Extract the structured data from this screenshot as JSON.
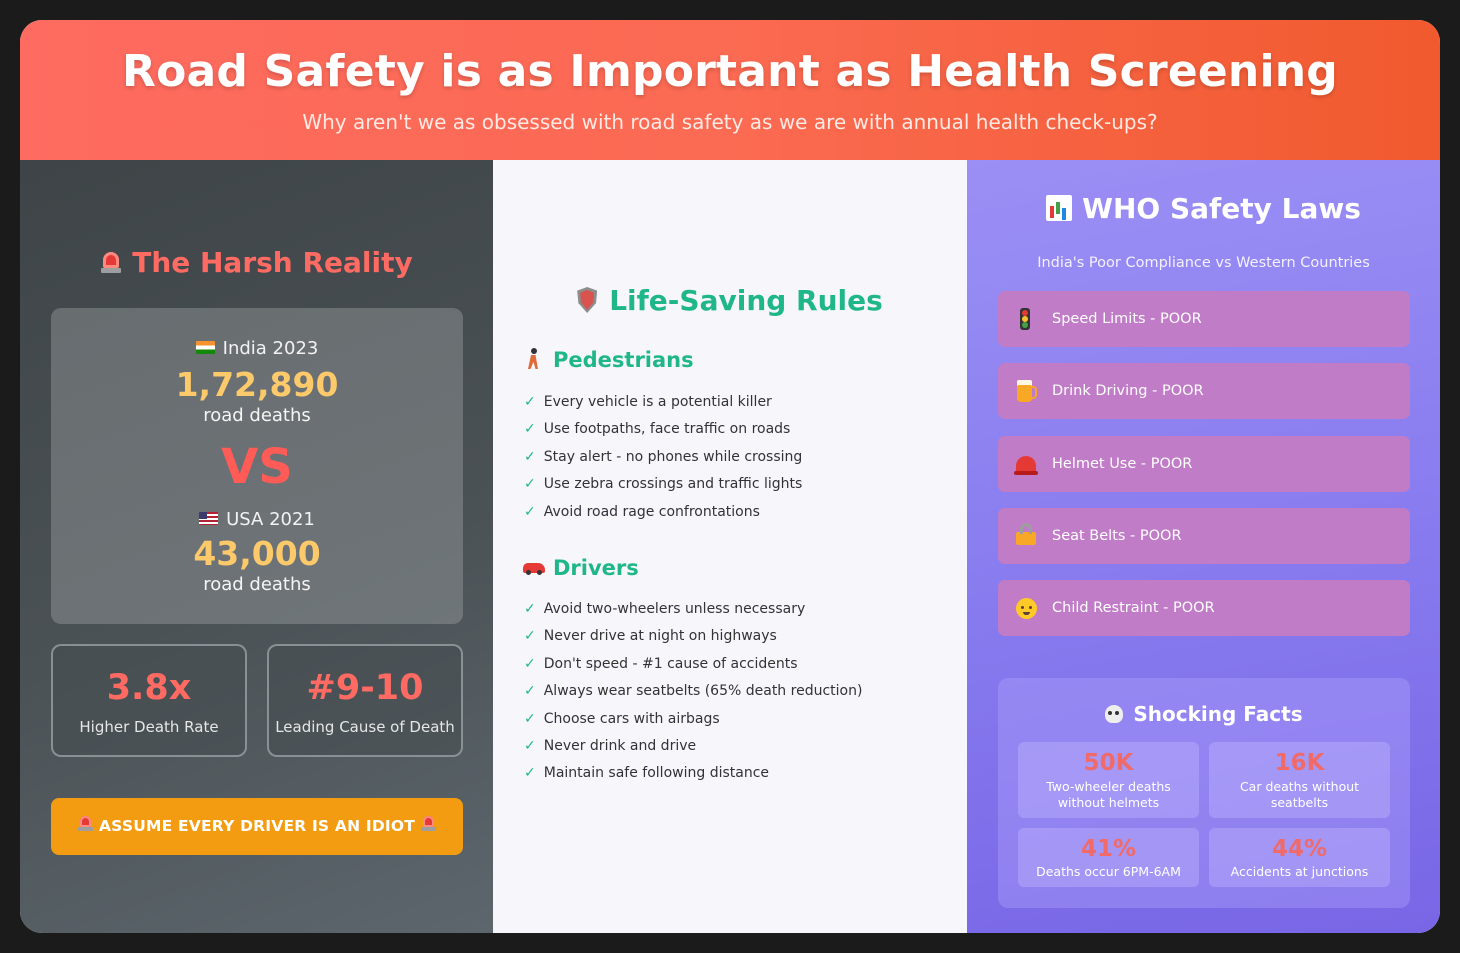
{
  "header": {
    "title": "Road Safety is as Important as Health Screening",
    "subtitle": "Why aren't we as obsessed with road safety as we are with annual health check-ups?"
  },
  "reality": {
    "title": "The Harsh Reality",
    "india": {
      "label": "India 2023",
      "value": "1,72,890",
      "unit": "road deaths"
    },
    "vs": "VS",
    "usa": {
      "label": "USA 2021",
      "value": "43,000",
      "unit": "road deaths"
    },
    "stats": [
      {
        "value": "3.8x",
        "label": "Higher Death Rate"
      },
      {
        "value": "#9-10",
        "label": "Leading Cause of Death"
      }
    ],
    "warning_label": "ASSUME EVERY DRIVER IS AN IDIOT"
  },
  "rules": {
    "title": "Life-Saving Rules",
    "pedestrians": {
      "title": "Pedestrians",
      "items": [
        "Every vehicle is a potential killer",
        "Use footpaths, face traffic on roads",
        "Stay alert - no phones while crossing",
        "Use zebra crossings and traffic lights",
        "Avoid road rage confrontations"
      ]
    },
    "drivers": {
      "title": "Drivers",
      "items": [
        "Avoid two-wheelers unless necessary",
        "Never drive at night on highways",
        "Don't speed - #1 cause of accidents",
        "Always wear seatbelts (65% death reduction)",
        "Choose cars with airbags",
        "Never drink and drive",
        "Maintain safe following distance"
      ]
    },
    "check": "✓"
  },
  "who": {
    "title": "WHO Safety Laws",
    "subtitle": "India's Poor Compliance vs Western Countries",
    "laws": [
      {
        "icon": "traffic-light-icon",
        "label": "Speed Limits - POOR"
      },
      {
        "icon": "beer-icon",
        "label": "Drink Driving - POOR"
      },
      {
        "icon": "helmet-icon",
        "label": "Helmet Use - POOR"
      },
      {
        "icon": "lock-icon",
        "label": "Seat Belts - POOR"
      },
      {
        "icon": "baby-icon",
        "label": "Child Restraint - POOR"
      }
    ],
    "facts": {
      "title": "Shocking Facts",
      "items": [
        {
          "value": "50K",
          "label": "Two-wheeler deaths without helmets"
        },
        {
          "value": "16K",
          "label": "Car deaths without seatbelts"
        },
        {
          "value": "41%",
          "label": "Deaths occur 6PM-6AM"
        },
        {
          "value": "44%",
          "label": "Accidents at junctions"
        }
      ]
    }
  },
  "colors": {
    "accent_red": "#ff6b63",
    "accent_green": "#1fb78a",
    "accent_yellow": "#fcc96b",
    "warning_orange": "#f39c12",
    "law_pink": "#c07cc7"
  }
}
